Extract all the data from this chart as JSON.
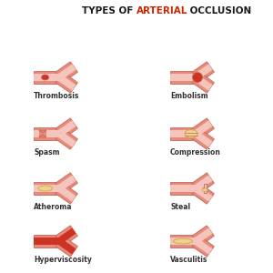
{
  "title_parts": [
    {
      "text": "TYPES OF ",
      "color": "#1a1a1a",
      "bold": true
    },
    {
      "text": "ARTERIAL",
      "color": "#cc2200",
      "bold": true
    },
    {
      "text": " OCCLUSION",
      "color": "#1a1a1a",
      "bold": true
    }
  ],
  "labels": [
    [
      "Thrombosis",
      "Embolism"
    ],
    [
      "Spasm",
      "Compression"
    ],
    [
      "Atheroma",
      "Steal"
    ],
    [
      "Hyperviscosity",
      "Vasculitis"
    ]
  ],
  "artery_color": "#e8897a",
  "artery_edge": "#c46a5a",
  "lumen_color": "#f5c4bc",
  "bg_color": "#ffffff",
  "clot_dark": "#cc3322",
  "clot_light": "#f0d090",
  "clot_embolism": "#cc3322",
  "fill_hyperviscosity": "#cc3322",
  "label_color": "#333333",
  "label_fontsize": 5.5,
  "title_fontsize": 7.5
}
